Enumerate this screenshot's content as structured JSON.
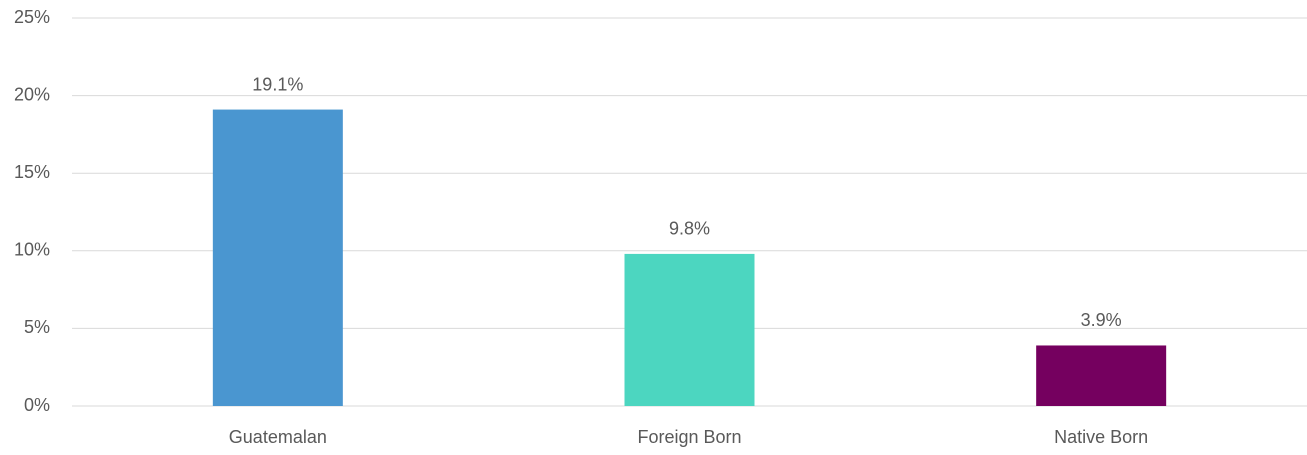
{
  "chart_data": {
    "type": "bar",
    "categories": [
      "Guatemalan",
      "Foreign Born",
      "Native Born"
    ],
    "values": [
      19.1,
      9.8,
      3.9
    ],
    "value_labels": [
      "19.1%",
      "9.8%",
      "3.9%"
    ],
    "colors": [
      "#4a96d0",
      "#4cd6c0",
      "#75005f"
    ],
    "ylim": [
      0,
      25
    ],
    "yticks": [
      {
        "value": 0,
        "label": "0%"
      },
      {
        "value": 5,
        "label": "5%"
      },
      {
        "value": 10,
        "label": "10%"
      },
      {
        "value": 15,
        "label": "15%"
      },
      {
        "value": 20,
        "label": "20%"
      },
      {
        "value": 25,
        "label": "25%"
      }
    ],
    "grid": true
  }
}
